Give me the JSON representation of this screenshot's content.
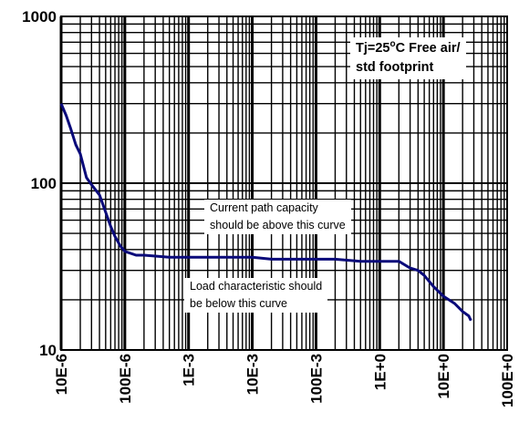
{
  "chart_data": {
    "type": "line",
    "x_scale": "log",
    "y_scale": "log",
    "grid": true,
    "ylim": [
      10,
      1000
    ],
    "yticks": [
      "10",
      "100",
      "1000"
    ],
    "xticks": [
      "10E-6",
      "100E-6",
      "1E-3",
      "10E-3",
      "100E-3",
      "1E+0",
      "10E+0",
      "100E+0"
    ],
    "x_tick_labels": [
      "10E-6",
      "100E-6",
      "1E-3",
      "10E-3",
      "100E-3",
      "1E+0",
      "10E+0",
      "100E+0"
    ],
    "series": [
      {
        "color": "#0a0a7a",
        "x": [
          1e-05,
          1.2e-05,
          1.4e-05,
          1.7e-05,
          2e-05,
          2.5e-05,
          3e-05,
          4e-05,
          5e-05,
          6e-05,
          7e-05,
          8.5e-05,
          0.0001,
          0.00015,
          0.0002,
          0.0005,
          0.001,
          0.002,
          0.005,
          0.01,
          0.02,
          0.05,
          0.1,
          0.2,
          0.5,
          1,
          1.5,
          2,
          3,
          4,
          5,
          7,
          10,
          15,
          20,
          25,
          27
        ],
        "y": [
          300,
          255,
          215,
          170,
          150,
          108,
          98,
          85,
          67,
          55,
          48,
          42,
          39,
          37,
          37,
          36,
          36,
          36,
          36,
          36,
          35,
          35,
          35,
          35,
          34,
          34,
          34,
          34,
          31,
          30,
          28,
          24,
          21,
          19,
          17,
          16,
          15
        ]
      }
    ],
    "annotations": {
      "conditions_line1_prefix": "Tj=25",
      "conditions_degree": "o",
      "conditions_line1_suffix": "C  Free air/",
      "conditions_line2": "std footprint",
      "upper_note_line1": "Current path capacity",
      "upper_note_line2": "should be above this curve",
      "lower_note_line1": "Load characteristic should",
      "lower_note_line2": "be below this curve"
    }
  }
}
